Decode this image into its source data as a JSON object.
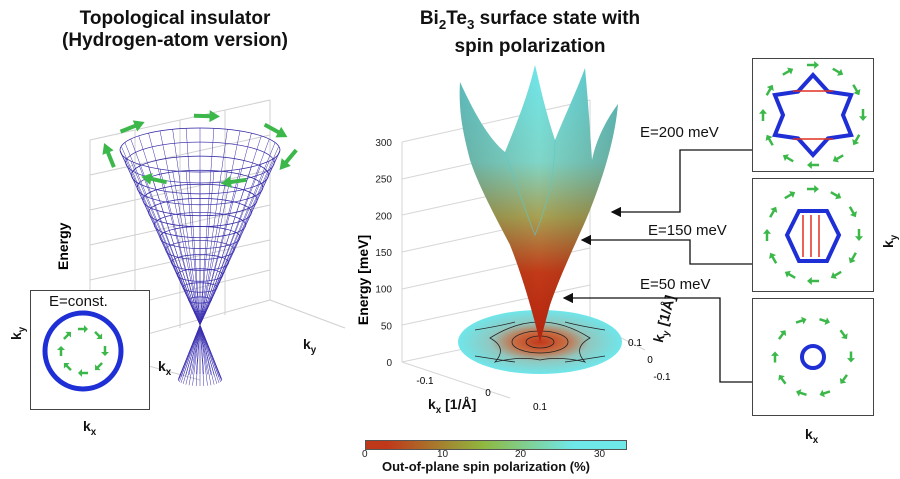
{
  "left": {
    "title_line1": "Topological insulator",
    "title_line2": "(Hydrogen-atom version)",
    "energy_label": "Energy",
    "kx_label": "k",
    "kx_sub": "x",
    "ky_label": "k",
    "ky_sub": "y",
    "inset": {
      "label": "E=const.",
      "kx_label": "k",
      "kx_sub": "x",
      "ky_label": "k",
      "ky_sub": "y"
    }
  },
  "middle": {
    "title_part1": "Bi",
    "title_sub1": "2",
    "title_part2": "Te",
    "title_sub2": "3",
    "title_part3": " surface state with",
    "title_line2": "spin polarization",
    "ylabel": "Energy [meV]",
    "yticks": [
      "0",
      "50",
      "100",
      "150",
      "200",
      "250",
      "300"
    ],
    "kx_label": "k",
    "kx_sub": "x",
    "kx_unit": " [1/Å]",
    "kx_ticks": [
      "-0.1",
      "0",
      "0.1"
    ],
    "ky_label": "k",
    "ky_sub": "y",
    "ky_unit": " [1/Å]",
    "ky_ticks": [
      "0.1",
      "0",
      "-0.1"
    ],
    "colorbar": {
      "ticks": [
        "0",
        "10",
        "20",
        "30"
      ],
      "label": "Out-of-plane spin polarization (%)",
      "colors": [
        "#c0381a",
        "#8fb83f",
        "#6fe8ea"
      ]
    }
  },
  "energy_levels": [
    {
      "label": "E=200 meV"
    },
    {
      "label": "E=150 meV"
    },
    {
      "label": "E=50 meV"
    }
  ],
  "right": {
    "ky_label": "k",
    "ky_sub": "y",
    "kx_label": "k",
    "kx_sub": "x"
  }
}
